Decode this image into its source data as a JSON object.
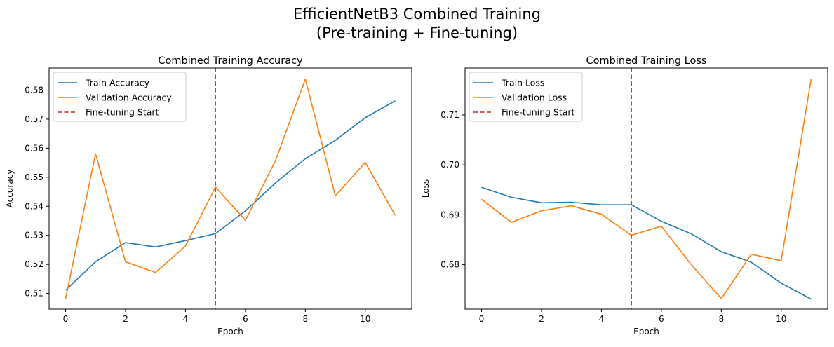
{
  "figure": {
    "title_line1": "EfficientNetB3 Combined Training",
    "title_line2": "(Pre-training + Fine-tuning)"
  },
  "colors": {
    "train": "#1f77b4",
    "validation": "#ff7f0e",
    "finetune": "#d62728"
  },
  "chart_data": [
    {
      "type": "line",
      "title": "Combined Training Accuracy",
      "xlabel": "Epoch",
      "ylabel": "Accuracy",
      "x": [
        0,
        1,
        2,
        3,
        4,
        5,
        6,
        7,
        8,
        9,
        10,
        11
      ],
      "xlim": [
        -0.55,
        11.55
      ],
      "ylim": [
        0.5046,
        0.5876
      ],
      "xticks": [
        0,
        2,
        4,
        6,
        8,
        10
      ],
      "yticks": [
        0.51,
        0.52,
        0.53,
        0.54,
        0.55,
        0.56,
        0.57,
        0.58
      ],
      "grid": false,
      "legend_position": "top-left",
      "series": [
        {
          "name": "Train Accuracy",
          "color": "#1f77b4",
          "values": [
            0.5111,
            0.5209,
            0.5275,
            0.526,
            0.5282,
            0.5306,
            0.5384,
            0.548,
            0.5564,
            0.5627,
            0.5705,
            0.5763
          ]
        },
        {
          "name": "Validation Accuracy",
          "color": "#ff7f0e",
          "values": [
            0.5082,
            0.5581,
            0.5209,
            0.5172,
            0.5263,
            0.5466,
            0.5352,
            0.5556,
            0.5838,
            0.5436,
            0.5551,
            0.5369
          ]
        }
      ],
      "vline": {
        "name": "Fine-tuning Start",
        "x": 5,
        "color": "#d62728",
        "style": "dashed"
      }
    },
    {
      "type": "line",
      "title": "Combined Training Loss",
      "xlabel": "Epoch",
      "ylabel": "Loss",
      "x": [
        0,
        1,
        2,
        3,
        4,
        5,
        6,
        7,
        8,
        9,
        10,
        11
      ],
      "xlim": [
        -0.55,
        11.55
      ],
      "ylim": [
        0.6711,
        0.7194
      ],
      "xticks": [
        0,
        2,
        4,
        6,
        8,
        10
      ],
      "yticks": [
        0.68,
        0.69,
        0.7,
        0.71
      ],
      "grid": false,
      "legend_position": "top-left",
      "series": [
        {
          "name": "Train Loss",
          "color": "#1f77b4",
          "values": [
            0.6955,
            0.6935,
            0.6924,
            0.6925,
            0.692,
            0.692,
            0.6887,
            0.6862,
            0.6826,
            0.6805,
            0.6763,
            0.6731
          ]
        },
        {
          "name": "Validation Loss",
          "color": "#ff7f0e",
          "values": [
            0.6931,
            0.6885,
            0.6908,
            0.6918,
            0.6901,
            0.6859,
            0.6877,
            0.68,
            0.6732,
            0.6821,
            0.6808,
            0.7173
          ]
        }
      ],
      "vline": {
        "name": "Fine-tuning Start",
        "x": 5,
        "color": "#d62728",
        "style": "dashed"
      }
    }
  ]
}
